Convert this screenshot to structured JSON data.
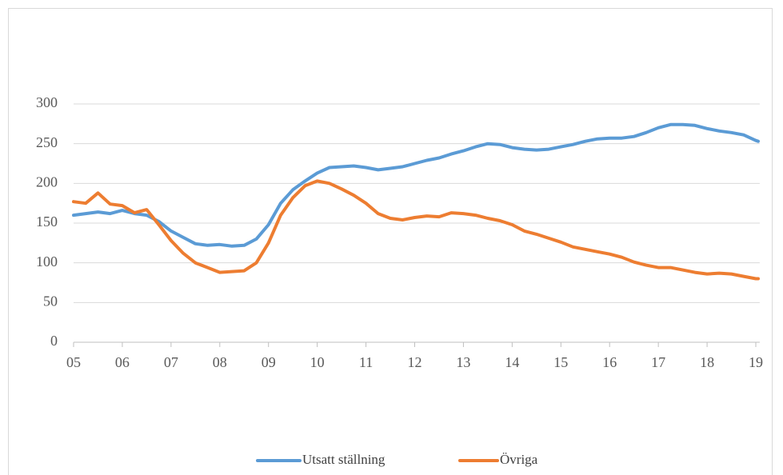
{
  "chart_data": {
    "type": "line",
    "x": [
      5,
      5.25,
      5.5,
      5.75,
      6,
      6.25,
      6.5,
      6.75,
      7,
      7.25,
      7.5,
      7.75,
      8,
      8.25,
      8.5,
      8.75,
      9,
      9.25,
      9.5,
      9.75,
      10,
      10.25,
      10.5,
      10.75,
      11,
      11.25,
      11.5,
      11.75,
      12,
      12.25,
      12.5,
      12.75,
      13,
      13.25,
      13.5,
      13.75,
      14,
      14.25,
      14.5,
      14.75,
      15,
      15.25,
      15.5,
      15.75,
      16,
      16.25,
      16.5,
      16.75,
      17,
      17.25,
      17.5,
      17.75,
      18,
      18.25,
      18.5,
      18.75,
      19,
      19.05
    ],
    "series": [
      {
        "name": "Utsatt ställning",
        "color": "#5b9bd5",
        "values": [
          160,
          162,
          164,
          162,
          166,
          162,
          160,
          152,
          140,
          132,
          124,
          122,
          123,
          121,
          122,
          130,
          148,
          175,
          192,
          203,
          213,
          220,
          221,
          222,
          220,
          217,
          219,
          221,
          225,
          229,
          232,
          237,
          241,
          246,
          250,
          249,
          245,
          243,
          242,
          243,
          246,
          249,
          253,
          256,
          257,
          257,
          259,
          264,
          270,
          274,
          274,
          273,
          269,
          266,
          264,
          261,
          254,
          253
        ]
      },
      {
        "name": "Övriga",
        "color": "#ed7d31",
        "values": [
          177,
          175,
          188,
          174,
          172,
          163,
          167,
          148,
          128,
          112,
          100,
          94,
          88,
          89,
          90,
          100,
          125,
          160,
          182,
          197,
          203,
          200,
          193,
          185,
          175,
          162,
          156,
          154,
          157,
          159,
          158,
          163,
          162,
          160,
          156,
          153,
          148,
          140,
          136,
          131,
          126,
          120,
          117,
          114,
          111,
          107,
          101,
          97,
          94,
          94,
          91,
          88,
          86,
          87,
          86,
          83,
          80,
          80
        ]
      }
    ],
    "xlim": [
      5,
      19.08
    ],
    "xticks": [
      {
        "value": 5,
        "label": "05"
      },
      {
        "value": 6,
        "label": "06"
      },
      {
        "value": 7,
        "label": "07"
      },
      {
        "value": 8,
        "label": "08"
      },
      {
        "value": 9,
        "label": "09"
      },
      {
        "value": 10,
        "label": "10"
      },
      {
        "value": 11,
        "label": "11"
      },
      {
        "value": 12,
        "label": "12"
      },
      {
        "value": 13,
        "label": "13"
      },
      {
        "value": 14,
        "label": "14"
      },
      {
        "value": 15,
        "label": "15"
      },
      {
        "value": 16,
        "label": "16"
      },
      {
        "value": 17,
        "label": "17"
      },
      {
        "value": 18,
        "label": "18"
      },
      {
        "value": 19,
        "label": "19"
      }
    ],
    "ylim": [
      0,
      300
    ],
    "yticks": [
      0,
      50,
      100,
      150,
      200,
      250,
      300
    ],
    "grid": true,
    "legend": "bottom"
  }
}
